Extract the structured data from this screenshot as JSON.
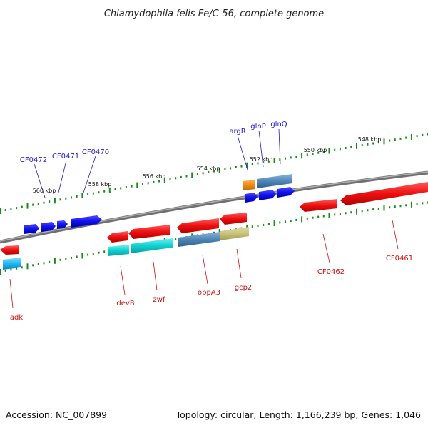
{
  "title": "Chlamydophila felis Fe/C-56, complete genome",
  "footer": {
    "accession": "Accession: NC_007899",
    "info": "Topology: circular; Length: 1,166,239 bp; Genes: 1,046"
  },
  "colors": {
    "backbone": "#8a8a8a",
    "forward_gene": "#1010ee",
    "reverse_gene": "#ee1010",
    "label_forward": "#1a1acc",
    "label_reverse": "#cc1111",
    "ticks": "#1a8a1a"
  },
  "scale": {
    "tick_labels": [
      "560 kbp",
      "558 kbp",
      "556 kbp",
      "554 kbp",
      "552 kbp",
      "550 kbp",
      "548 kbp"
    ]
  },
  "gene_labels": {
    "forward": [
      "CF0472",
      "CF0471",
      "CF0470",
      "argR",
      "glnP",
      "glnQ"
    ],
    "reverse": [
      "adk",
      "devB",
      "zwf",
      "oppA3",
      "gcp2",
      "CF0462",
      "CF0461"
    ]
  }
}
